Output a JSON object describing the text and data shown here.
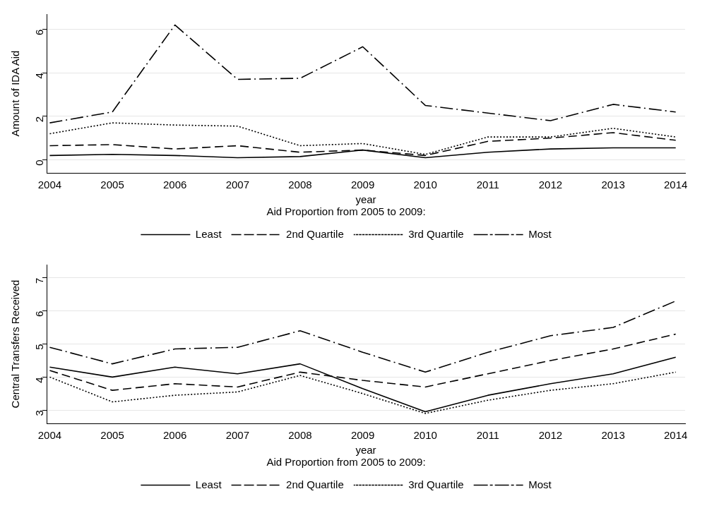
{
  "chart_data": [
    {
      "type": "line",
      "xlabel": "year",
      "ylabel": "Amount of IDA Aid",
      "legend_title": "Aid Proportion from 2005 to 2009:",
      "x": [
        2004,
        2005,
        2006,
        2007,
        2008,
        2009,
        2010,
        2011,
        2012,
        2013,
        2014
      ],
      "series": [
        {
          "name": "Least",
          "color": "#000000",
          "line_style": "solid",
          "values": [
            0.2,
            0.25,
            0.2,
            0.1,
            0.15,
            0.45,
            0.1,
            0.35,
            0.5,
            0.55,
            0.55
          ]
        },
        {
          "name": "2nd Quartile",
          "color": "#000000",
          "line_style": "dashed",
          "values": [
            0.65,
            0.7,
            0.5,
            0.65,
            0.35,
            0.45,
            0.2,
            0.85,
            1.0,
            1.25,
            0.9
          ]
        },
        {
          "name": "3rd Quartile",
          "color": "#000000",
          "line_style": "dotted",
          "values": [
            1.2,
            1.7,
            1.6,
            1.55,
            0.65,
            0.75,
            0.25,
            1.05,
            1.05,
            1.45,
            1.05
          ]
        },
        {
          "name": "Most",
          "color": "#000000",
          "line_style": "dashdot",
          "values": [
            1.7,
            2.2,
            6.2,
            3.7,
            3.75,
            5.2,
            2.5,
            2.15,
            1.8,
            2.55,
            2.2
          ]
        }
      ],
      "xlim": [
        2003.95,
        2014.15
      ],
      "xticks": [
        2004,
        2005,
        2006,
        2007,
        2008,
        2009,
        2010,
        2011,
        2012,
        2013,
        2014
      ],
      "ylim": [
        -0.6,
        6.7
      ],
      "yticks": [
        0,
        2,
        4,
        6
      ],
      "grid": "y",
      "legend": "bottom",
      "marker": "none"
    },
    {
      "type": "line",
      "xlabel": "year",
      "ylabel": "Central Transfers Received",
      "legend_title": "Aid Proportion from 2005 to 2009:",
      "x": [
        2004,
        2005,
        2006,
        2007,
        2008,
        2009,
        2010,
        2011,
        2012,
        2013,
        2014
      ],
      "series": [
        {
          "name": "Least",
          "color": "#000000",
          "line_style": "solid",
          "values": [
            4.3,
            4.0,
            4.3,
            4.1,
            4.4,
            3.65,
            2.95,
            3.45,
            3.8,
            4.1,
            4.6
          ]
        },
        {
          "name": "2nd Quartile",
          "color": "#000000",
          "line_style": "dashed",
          "values": [
            4.2,
            3.6,
            3.8,
            3.7,
            4.15,
            3.9,
            3.7,
            4.1,
            4.5,
            4.85,
            5.3
          ]
        },
        {
          "name": "3rd Quartile",
          "color": "#000000",
          "line_style": "dotted",
          "values": [
            4.0,
            3.25,
            3.45,
            3.55,
            4.05,
            3.5,
            2.9,
            3.3,
            3.6,
            3.8,
            4.15
          ]
        },
        {
          "name": "Most",
          "color": "#000000",
          "line_style": "dashdot",
          "values": [
            4.9,
            4.4,
            4.85,
            4.9,
            5.4,
            4.75,
            4.15,
            4.75,
            5.25,
            5.5,
            6.3
          ]
        }
      ],
      "xlim": [
        2003.95,
        2014.15
      ],
      "xticks": [
        2004,
        2005,
        2006,
        2007,
        2008,
        2009,
        2010,
        2011,
        2012,
        2013,
        2014
      ],
      "ylim": [
        2.6,
        7.4
      ],
      "yticks": [
        3,
        4,
        5,
        6,
        7
      ],
      "grid": "y",
      "legend": "bottom",
      "marker": "none"
    }
  ]
}
